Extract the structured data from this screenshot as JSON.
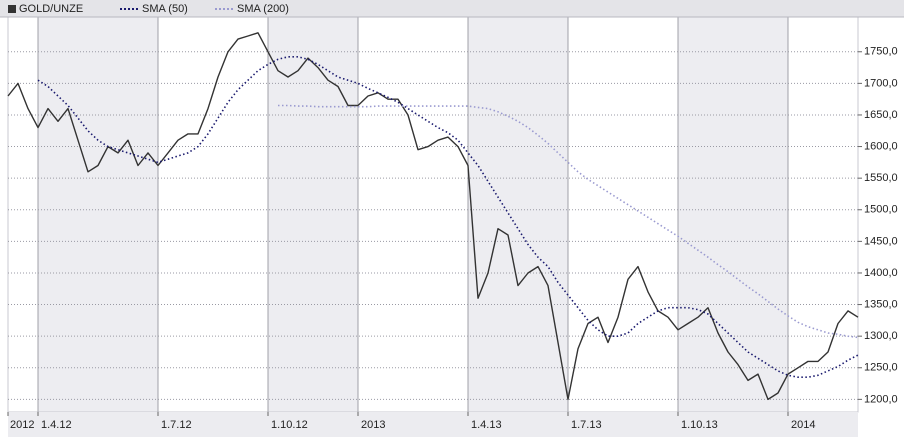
{
  "chart_data": {
    "type": "line",
    "categories": [
      "2012",
      null,
      null,
      "1.4.12",
      null,
      null,
      null,
      null,
      null,
      null,
      null,
      null,
      null,
      null,
      null,
      "1.7.12",
      null,
      null,
      null,
      null,
      null,
      null,
      null,
      null,
      null,
      null,
      "1.10.12",
      null,
      null,
      null,
      null,
      null,
      null,
      null,
      null,
      "2013",
      null,
      null,
      null,
      null,
      null,
      null,
      null,
      null,
      null,
      null,
      "1.4.13",
      null,
      null,
      null,
      null,
      null,
      null,
      null,
      null,
      null,
      "1.7.13",
      null,
      null,
      null,
      null,
      null,
      null,
      null,
      null,
      null,
      null,
      "1.10.13",
      null,
      null,
      null,
      null,
      null,
      null,
      null,
      null,
      null,
      null,
      "2014",
      null,
      null,
      null,
      null,
      null,
      null,
      null
    ],
    "series": [
      {
        "name": "GOLD/UNZE",
        "color": "#333333",
        "style": "solid",
        "values": [
          1680,
          1700,
          1660,
          1630,
          1660,
          1640,
          1660,
          1610,
          1560,
          1570,
          1600,
          1590,
          1610,
          1570,
          1590,
          1570,
          1590,
          1610,
          1620,
          1620,
          1660,
          1710,
          1750,
          1770,
          1775,
          1780,
          1750,
          1720,
          1710,
          1720,
          1740,
          1725,
          1705,
          1695,
          1665,
          1665,
          1680,
          1685,
          1675,
          1675,
          1650,
          1595,
          1600,
          1610,
          1615,
          1600,
          1570,
          1360,
          1400,
          1470,
          1460,
          1380,
          1400,
          1410,
          1380,
          1290,
          1200,
          1280,
          1320,
          1330,
          1290,
          1330,
          1390,
          1410,
          1370,
          1340,
          1330,
          1310,
          1320,
          1330,
          1345,
          1305,
          1275,
          1255,
          1230,
          1240,
          1200,
          1210,
          1240,
          1250,
          1260,
          1260,
          1275,
          1320,
          1340,
          1330
        ]
      },
      {
        "name": "SMA (50)",
        "color": "#1a1a6e",
        "style": "dotted",
        "values": [
          null,
          null,
          null,
          1705,
          1695,
          1680,
          1665,
          1645,
          1625,
          1610,
          1600,
          1595,
          1590,
          1585,
          1580,
          1575,
          1580,
          1585,
          1590,
          1600,
          1620,
          1645,
          1670,
          1690,
          1705,
          1720,
          1730,
          1738,
          1742,
          1742,
          1738,
          1730,
          1720,
          1710,
          1705,
          1700,
          1692,
          1685,
          1678,
          1670,
          1660,
          1650,
          1640,
          1630,
          1622,
          1610,
          1590,
          1570,
          1545,
          1520,
          1495,
          1470,
          1445,
          1425,
          1410,
          1385,
          1365,
          1345,
          1325,
          1310,
          1300,
          1300,
          1305,
          1320,
          1330,
          1340,
          1345,
          1345,
          1345,
          1342,
          1335,
          1320,
          1305,
          1290,
          1275,
          1265,
          1255,
          1245,
          1238,
          1235,
          1235,
          1238,
          1245,
          1252,
          1262,
          1270
        ]
      },
      {
        "name": "SMA (200)",
        "color": "#9a9ad0",
        "style": "dotted",
        "values": [
          null,
          null,
          null,
          null,
          null,
          null,
          null,
          null,
          null,
          null,
          null,
          null,
          null,
          null,
          null,
          null,
          null,
          null,
          null,
          null,
          null,
          null,
          null,
          null,
          null,
          null,
          null,
          1665,
          1665,
          1664,
          1664,
          1663,
          1663,
          1663,
          1663,
          1663,
          1663,
          1664,
          1664,
          1664,
          1664,
          1664,
          1664,
          1664,
          1664,
          1664,
          1664,
          1662,
          1660,
          1655,
          1648,
          1640,
          1630,
          1618,
          1605,
          1590,
          1575,
          1560,
          1548,
          1538,
          1528,
          1518,
          1508,
          1498,
          1488,
          1478,
          1468,
          1458,
          1447,
          1436,
          1425,
          1413,
          1402,
          1390,
          1378,
          1367,
          1355,
          1343,
          1332,
          1322,
          1315,
          1310,
          1305,
          1303,
          1300,
          1298
        ]
      }
    ],
    "ylim": [
      1180,
      1805
    ],
    "yticks": [
      {
        "value": 1200,
        "label": "1200,0"
      },
      {
        "value": 1250,
        "label": "1250,0"
      },
      {
        "value": 1300,
        "label": "1300,0"
      },
      {
        "value": 1350,
        "label": "1350,0"
      },
      {
        "value": 1400,
        "label": "1400,0"
      },
      {
        "value": 1450,
        "label": "1450,0"
      },
      {
        "value": 1500,
        "label": "1500,0"
      },
      {
        "value": 1550,
        "label": "1550,0"
      },
      {
        "value": 1600,
        "label": "1600,0"
      },
      {
        "value": 1650,
        "label": "1650,0"
      },
      {
        "value": 1700,
        "label": "1700,0"
      },
      {
        "value": 1750,
        "label": "1750,0"
      }
    ],
    "grid": true,
    "legend": "top"
  }
}
